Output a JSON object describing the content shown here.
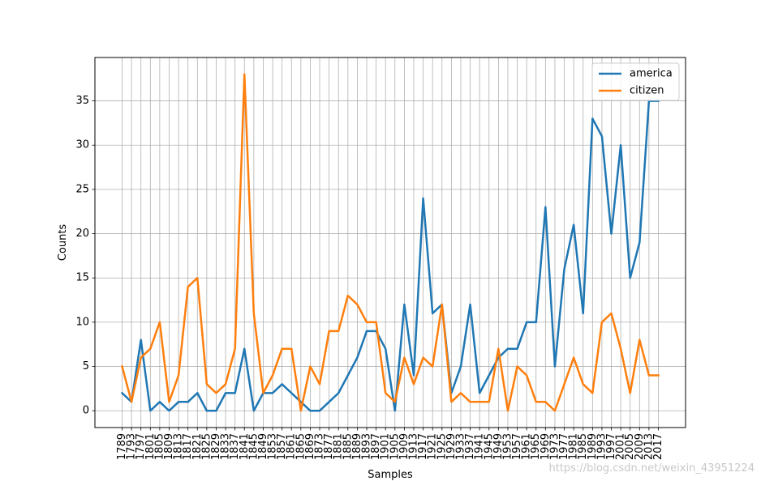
{
  "chart_data": {
    "type": "line",
    "xlabel": "Samples",
    "ylabel": "Counts",
    "ylim": [
      -1.9,
      39.9
    ],
    "yticks": [
      0,
      5,
      10,
      15,
      20,
      25,
      30,
      35
    ],
    "grid": true,
    "legend_position": "top-right",
    "categories": [
      "1789",
      "1793",
      "1797",
      "1801",
      "1805",
      "1809",
      "1813",
      "1817",
      "1821",
      "1825",
      "1829",
      "1833",
      "1837",
      "1841",
      "1845",
      "1849",
      "1853",
      "1857",
      "1861",
      "1865",
      "1869",
      "1873",
      "1877",
      "1881",
      "1885",
      "1889",
      "1893",
      "1897",
      "1901",
      "1905",
      "1909",
      "1913",
      "1917",
      "1921",
      "1925",
      "1929",
      "1933",
      "1937",
      "1941",
      "1945",
      "1949",
      "1953",
      "1957",
      "1961",
      "1965",
      "1969",
      "1973",
      "1977",
      "1981",
      "1985",
      "1989",
      "1993",
      "1997",
      "2001",
      "2005",
      "2009",
      "2013",
      "2017"
    ],
    "series": [
      {
        "name": "america",
        "color": "#1f77b4",
        "values": [
          2,
          1,
          8,
          0,
          1,
          0,
          1,
          1,
          2,
          0,
          0,
          2,
          2,
          7,
          0,
          2,
          2,
          3,
          2,
          1,
          0,
          0,
          1,
          2,
          4,
          6,
          9,
          9,
          7,
          0,
          12,
          4,
          24,
          11,
          12,
          2,
          5,
          12,
          2,
          4,
          6,
          7,
          7,
          10,
          10,
          23,
          5,
          16,
          21,
          11,
          33,
          31,
          20,
          30,
          15,
          19,
          35,
          35
        ]
      },
      {
        "name": "citizen",
        "color": "#ff7f0e",
        "values": [
          5,
          1,
          6,
          7,
          10,
          1,
          4,
          14,
          15,
          3,
          2,
          3,
          7,
          38,
          11,
          2,
          4,
          7,
          7,
          0,
          5,
          3,
          9,
          9,
          13,
          12,
          10,
          10,
          2,
          1,
          6,
          3,
          6,
          5,
          12,
          1,
          2,
          1,
          1,
          1,
          7,
          0,
          5,
          4,
          1,
          1,
          0,
          3,
          6,
          3,
          2,
          10,
          11,
          7,
          2,
          8,
          4,
          4
        ]
      }
    ]
  },
  "watermark": "https://blog.csdn.net/weixin_43951224"
}
